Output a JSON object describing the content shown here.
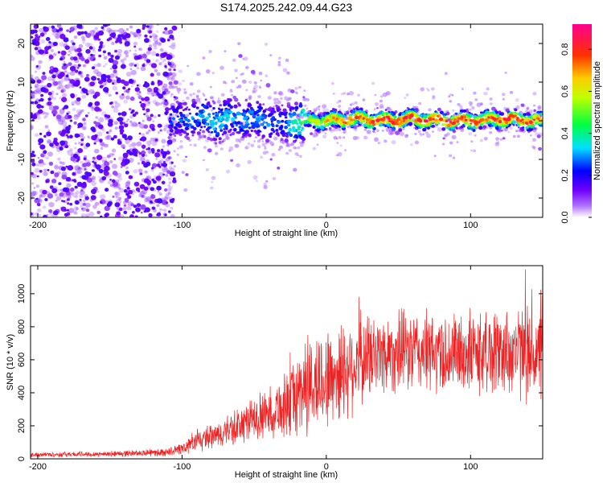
{
  "title": "S174.2025.242.09.44.G23",
  "chart_data": [
    {
      "type": "heatmap",
      "xlabel": "Height of straight line (km)",
      "ylabel": "Frequency (Hz)",
      "xlim": [
        -205,
        150
      ],
      "ylim": [
        -25,
        25
      ],
      "xticks": [
        -200,
        -100,
        0,
        100
      ],
      "yticks": [
        -20,
        -10,
        0,
        10,
        20
      ],
      "colorbar": {
        "label": "Normalized spectral amplitude",
        "ticks": [
          0.0,
          0.2,
          0.4,
          0.6,
          0.8
        ],
        "tick_labels": [
          "0.0",
          "0.2",
          "0.4",
          "0.6",
          "0.8"
        ],
        "range": [
          0.0,
          0.92
        ],
        "colors": [
          "#ffffff",
          "#8000ff",
          "#0000ff",
          "#00ffff",
          "#00ff00",
          "#ffff00",
          "#ff8000",
          "#ff0000",
          "#ff0080"
        ]
      },
      "ridge": {
        "x": [
          -105,
          -90,
          -75,
          -60,
          -45,
          -30,
          -20,
          -10,
          0,
          20,
          40,
          60,
          80,
          100,
          120,
          150
        ],
        "freq": [
          0,
          1,
          0,
          1,
          0,
          -1,
          0,
          0,
          0,
          0.5,
          0,
          0.5,
          0,
          0,
          0.5,
          0
        ],
        "amplitude": [
          0.25,
          0.3,
          0.35,
          0.3,
          0.3,
          0.25,
          0.45,
          0.55,
          0.65,
          0.75,
          0.8,
          0.8,
          0.82,
          0.78,
          0.8,
          0.75
        ]
      }
    },
    {
      "type": "line",
      "xlabel": "Height of straight line (km)",
      "ylabel": "SNR (10 * v/v)",
      "xlim": [
        -205,
        150
      ],
      "ylim": [
        0,
        1170
      ],
      "xticks": [
        -200,
        -100,
        0,
        100
      ],
      "yticks": [
        0,
        200,
        400,
        600,
        800,
        1000
      ],
      "color": "#ee2222",
      "envelope": {
        "x": [
          -205,
          -150,
          -110,
          -100,
          -90,
          -80,
          -70,
          -60,
          -50,
          -40,
          -30,
          -20,
          -15,
          -10,
          0,
          10,
          20,
          30,
          40,
          60,
          80,
          100,
          120,
          140,
          150
        ],
        "mean": [
          25,
          30,
          40,
          60,
          110,
          130,
          160,
          200,
          240,
          280,
          320,
          380,
          450,
          450,
          480,
          530,
          580,
          620,
          640,
          650,
          630,
          640,
          650,
          640,
          620
        ],
        "spread": [
          15,
          18,
          25,
          40,
          70,
          80,
          100,
          120,
          140,
          160,
          200,
          260,
          350,
          320,
          320,
          330,
          300,
          280,
          260,
          260,
          260,
          260,
          280,
          300,
          280
        ]
      }
    }
  ]
}
